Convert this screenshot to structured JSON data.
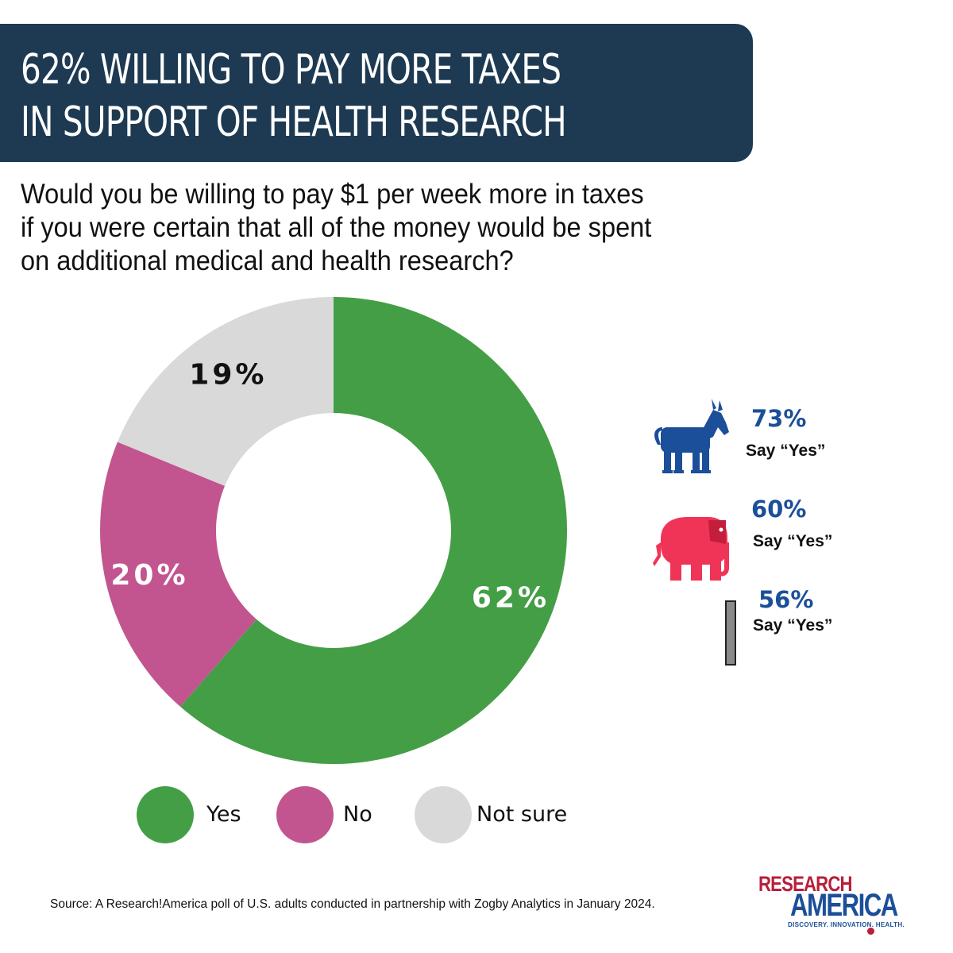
{
  "title": {
    "line1": "62% WILLING TO PAY MORE TAXES",
    "line2": "IN SUPPORT OF HEALTH RESEARCH"
  },
  "question": {
    "line1": "Would you be willing to pay $1 per week more in taxes",
    "line2": "if you were certain that all of the money would be spent",
    "line3": "on additional medical and health research?"
  },
  "chart_data": {
    "type": "pie",
    "donut": true,
    "categories": [
      "Yes",
      "No",
      "Not sure"
    ],
    "values": [
      62,
      20,
      19
    ],
    "labels": [
      "62%",
      "20%",
      "19%"
    ],
    "colors": [
      "#449e45",
      "#c2558f",
      "#d9d9d9"
    ],
    "label_colors": [
      "#ffffff",
      "#ffffff",
      "#111111"
    ],
    "legend_position": "bottom"
  },
  "party_breakdown": [
    {
      "icon": "donkey-icon",
      "percent": "73%",
      "caption": "Say “Yes”",
      "color": "#1b4f99"
    },
    {
      "icon": "elephant-icon",
      "percent": "60%",
      "caption": "Say “Yes”",
      "color": "#ef3457"
    },
    {
      "icon": "independent-icon",
      "percent": "56%",
      "caption": "Say “Yes”",
      "color": "#8a8a8a"
    }
  ],
  "source": "Source:  A Research!America poll of U.S. adults conducted in partnership with Zogby Analytics in January 2024.",
  "logo": {
    "line1": "RESEARCH",
    "line2": "AMERICA",
    "tagline": "DISCOVERY. INNOVATION. HEALTH."
  }
}
